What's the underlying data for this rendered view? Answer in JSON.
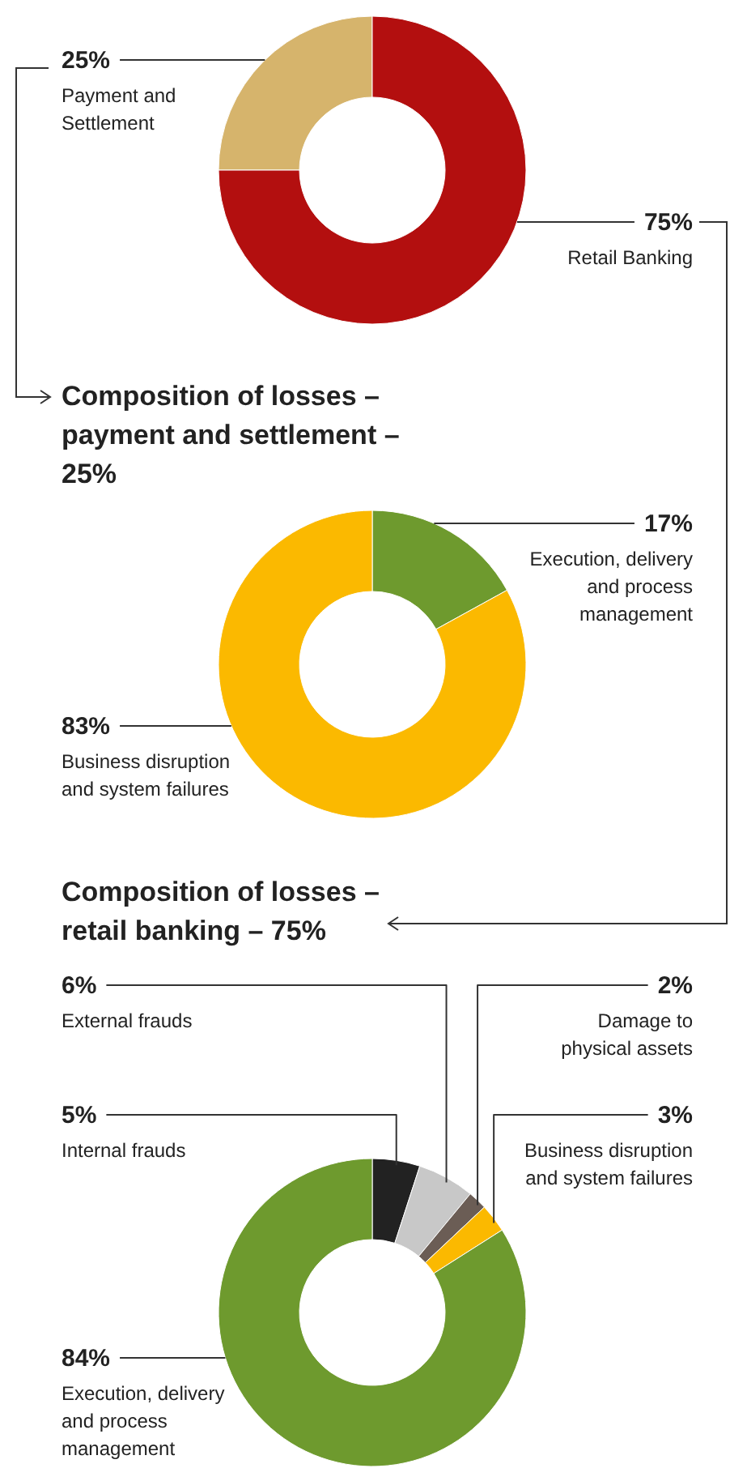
{
  "chart_data": [
    {
      "type": "donut",
      "categories": [
        "Payment and Settlement",
        "Retail Banking"
      ],
      "values": [
        25,
        75
      ],
      "value_labels": [
        "25%",
        "75%"
      ],
      "colors": [
        "#d6b46c",
        "#b30f0f"
      ]
    },
    {
      "type": "donut",
      "title": "Composition of losses – payment and settlement – 25%",
      "categories": [
        "Execution, delivery and process management",
        "Business disruption and system failures"
      ],
      "values": [
        17,
        83
      ],
      "value_labels": [
        "17%",
        "83%"
      ],
      "colors": [
        "#6e9a2e",
        "#fbb900"
      ]
    },
    {
      "type": "donut",
      "title": "Composition of losses – retail banking – 75%",
      "categories": [
        "Internal frauds",
        "External frauds",
        "Damage to physical assets",
        "Business disruption and system failures",
        "Execution, delivery and process management"
      ],
      "values": [
        5,
        6,
        2,
        3,
        84
      ],
      "value_labels": [
        "5%",
        "6%",
        "2%",
        "3%",
        "84%"
      ],
      "colors": [
        "#222222",
        "#c8c8c8",
        "#6b5d55",
        "#fbb900",
        "#6e9a2e"
      ]
    }
  ]
}
